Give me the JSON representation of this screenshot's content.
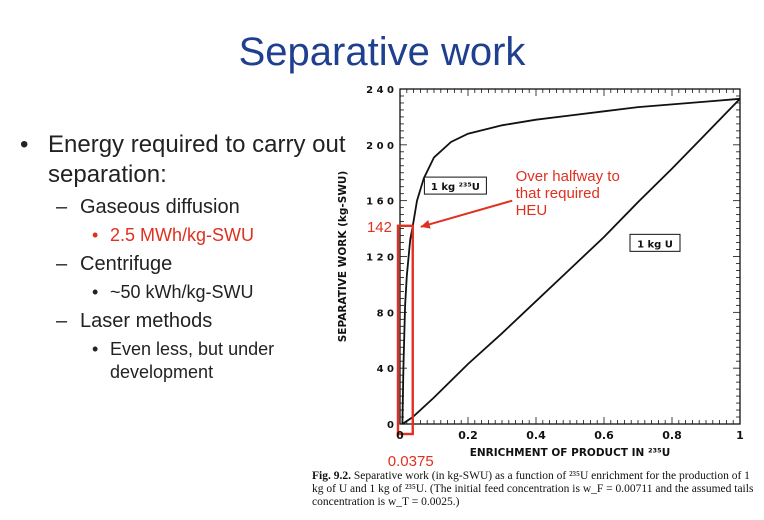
{
  "slide": {
    "title": "Separative work",
    "bullets": {
      "energy": "Energy required to carry out separation:",
      "gaseous": "Gaseous diffusion",
      "gaseous_value": "2.5 MWh/kg-SWU",
      "centrifuge": "Centrifuge",
      "centrifuge_value": "~50 kWh/kg-SWU",
      "laser": "Laser methods",
      "laser_value": "Even less, but under development"
    },
    "bullet_glyph": "•",
    "dash_glyph": "–"
  },
  "caption": {
    "label": "Fig. 9.2.",
    "text": "Separative work (in kg-SWU) as a function of ²³⁵U enrichment for the production of 1 kg of U and 1 kg of ²³⁵U. (The initial feed concentration is w_F = 0.00711 and the assumed tails concentration is w_T = 0.0025.)"
  },
  "chart_data": {
    "type": "line",
    "xlabel": "ENRICHMENT OF PRODUCT IN ²³⁵U",
    "ylabel": "SEPARATIVE WORK  (kg-SWU)",
    "xlim": [
      0,
      1
    ],
    "ylim": [
      0,
      240
    ],
    "x_ticks": [
      0,
      0.2,
      0.4,
      0.6,
      0.8,
      1
    ],
    "x_tick_labels": [
      "0",
      "0.2",
      "0.4",
      "0.6",
      "0.8",
      "1"
    ],
    "y_ticks": [
      0,
      40,
      80,
      120,
      160,
      200,
      240
    ],
    "y_tick_labels": [
      "0",
      "4 0",
      "8 0",
      "1 2 0",
      "1 6 0",
      "2 0 0",
      "2 4 0"
    ],
    "series": [
      {
        "name": "1 kg ²³⁵U",
        "x": [
          0.00711,
          0.01,
          0.015,
          0.02,
          0.03,
          0.0375,
          0.05,
          0.07,
          0.1,
          0.15,
          0.2,
          0.3,
          0.4,
          0.5,
          0.6,
          0.7,
          0.8,
          0.9,
          1.0
        ],
        "y": [
          0,
          40,
          85,
          106,
          132,
          142,
          160,
          176,
          191,
          202,
          208,
          214,
          218,
          221,
          224,
          227,
          229,
          231,
          233
        ]
      },
      {
        "name": "1 kg U",
        "x": [
          0.00711,
          0.0375,
          0.1,
          0.2,
          0.3,
          0.4,
          0.5,
          0.6,
          0.7,
          0.8,
          0.9,
          1.0
        ],
        "y": [
          0,
          5,
          19,
          43,
          65,
          88,
          111,
          134,
          159,
          183,
          208,
          233
        ]
      }
    ],
    "annotations": {
      "highlight_x_value": "0.0375",
      "highlight_y_value": "142",
      "highlight_color": "#e03020",
      "note": "Over halfway to that required HEU"
    }
  }
}
